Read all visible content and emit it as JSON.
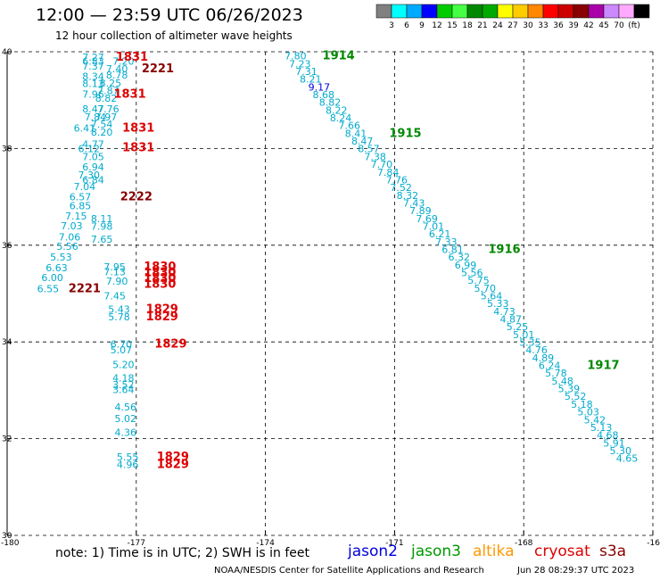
{
  "header": {
    "title": "12:00 — 23:59 UTC 06/26/2023",
    "subtitle": "12 hour collection of altimeter wave heights"
  },
  "footer": {
    "note": "note:  1) Time is in UTC; 2) SWH is in feet",
    "credit": "NOAA/NESDIS Center for Satellite Applications and Research",
    "timestamp": "Jun 28 08:29:37 UTC 2023"
  },
  "satellites": [
    {
      "name": "jason2",
      "color": "#0000dd"
    },
    {
      "name": "jason3",
      "color": "#009900"
    },
    {
      "name": "altika",
      "color": "#ff9900"
    },
    {
      "name": "cryosat",
      "color": "#dd0000"
    },
    {
      "name": "s3a",
      "color": "#880000"
    }
  ],
  "colorbar": {
    "colors": [
      "#808080",
      "#00ffff",
      "#00aaff",
      "#0000ff",
      "#00cc00",
      "#44ff44",
      "#008800",
      "#00aa00",
      "#ffff00",
      "#ffcc00",
      "#ff8800",
      "#ff0000",
      "#cc0000",
      "#880000",
      "#aa00aa",
      "#cc88ff",
      "#ffaaff",
      "#000000"
    ],
    "labels": [
      "3",
      "6",
      "9",
      "12",
      "15",
      "18",
      "21",
      "24",
      "27",
      "30",
      "33",
      "36",
      "39",
      "42",
      "45",
      "70",
      "(ft)"
    ]
  },
  "chart_data": {
    "type": "scatter",
    "xlim": [
      -180,
      -165
    ],
    "ylim": [
      30,
      40
    ],
    "xticks": [
      "-180",
      "-177",
      "-174",
      "-171",
      "-168",
      "-16"
    ],
    "yticks": [
      "30",
      "32",
      "34",
      "36",
      "38",
      "40"
    ],
    "grid": "dashed",
    "swh_points": [
      {
        "lon": -178.0,
        "lat": 39.82,
        "v": "7.27"
      },
      {
        "lon": -177.3,
        "lat": 39.73,
        "v": "7.20"
      },
      {
        "lon": -178.0,
        "lat": 39.73,
        "v": "6.83"
      },
      {
        "lon": -178.0,
        "lat": 39.63,
        "v": "7.37"
      },
      {
        "lon": -177.45,
        "lat": 39.58,
        "v": "7.40"
      },
      {
        "lon": -178.0,
        "lat": 39.42,
        "v": "8.34"
      },
      {
        "lon": -177.45,
        "lat": 39.45,
        "v": "8.78"
      },
      {
        "lon": -178.0,
        "lat": 39.27,
        "v": "8.13"
      },
      {
        "lon": -177.6,
        "lat": 39.28,
        "v": "8.25"
      },
      {
        "lon": -177.65,
        "lat": 39.12,
        "v": "7.87"
      },
      {
        "lon": -178.0,
        "lat": 39.05,
        "v": "7.96"
      },
      {
        "lon": -177.7,
        "lat": 38.97,
        "v": "8.82"
      },
      {
        "lon": -178.0,
        "lat": 38.75,
        "v": "8.47"
      },
      {
        "lon": -177.65,
        "lat": 38.75,
        "v": "7.76"
      },
      {
        "lon": -177.95,
        "lat": 38.58,
        "v": "7.84"
      },
      {
        "lon": -177.7,
        "lat": 38.58,
        "v": "7.97"
      },
      {
        "lon": -177.8,
        "lat": 38.43,
        "v": "7.54"
      },
      {
        "lon": -178.2,
        "lat": 38.35,
        "v": "6.41"
      },
      {
        "lon": -177.8,
        "lat": 38.27,
        "v": "8.20"
      },
      {
        "lon": -178.0,
        "lat": 38.02,
        "v": "4.77"
      },
      {
        "lon": -178.1,
        "lat": 37.92,
        "v": "6.12"
      },
      {
        "lon": -178.0,
        "lat": 37.76,
        "v": "7.05"
      },
      {
        "lon": -178.0,
        "lat": 37.55,
        "v": "6.94"
      },
      {
        "lon": -178.1,
        "lat": 37.38,
        "v": "7.30"
      },
      {
        "lon": -178.0,
        "lat": 37.28,
        "v": "6.84"
      },
      {
        "lon": -178.2,
        "lat": 37.14,
        "v": "7.04"
      },
      {
        "lon": -178.3,
        "lat": 36.93,
        "v": "6.57"
      },
      {
        "lon": -178.3,
        "lat": 36.74,
        "v": "6.85"
      },
      {
        "lon": -178.4,
        "lat": 36.53,
        "v": "7.15"
      },
      {
        "lon": -177.8,
        "lat": 36.48,
        "v": "8.11"
      },
      {
        "lon": -178.5,
        "lat": 36.33,
        "v": "7.03"
      },
      {
        "lon": -177.8,
        "lat": 36.32,
        "v": "7.98"
      },
      {
        "lon": -178.55,
        "lat": 36.1,
        "v": "7.06"
      },
      {
        "lon": -177.8,
        "lat": 36.05,
        "v": "7.65"
      },
      {
        "lon": -178.6,
        "lat": 35.9,
        "v": "5.56"
      },
      {
        "lon": -178.75,
        "lat": 35.68,
        "v": "5.53"
      },
      {
        "lon": -177.5,
        "lat": 35.48,
        "v": "7.95"
      },
      {
        "lon": -178.85,
        "lat": 35.46,
        "v": "6.63"
      },
      {
        "lon": -177.5,
        "lat": 35.38,
        "v": "7.13"
      },
      {
        "lon": -178.95,
        "lat": 35.26,
        "v": "6.00"
      },
      {
        "lon": -177.45,
        "lat": 35.18,
        "v": "7.90"
      },
      {
        "lon": -179.05,
        "lat": 35.03,
        "v": "6.55"
      },
      {
        "lon": -177.5,
        "lat": 34.88,
        "v": "7.45"
      },
      {
        "lon": -177.4,
        "lat": 34.6,
        "v": "5.43"
      },
      {
        "lon": -177.4,
        "lat": 34.45,
        "v": "5.78"
      },
      {
        "lon": -177.35,
        "lat": 33.88,
        "v": "6.70"
      },
      {
        "lon": -177.35,
        "lat": 33.76,
        "v": "5.07"
      },
      {
        "lon": -177.3,
        "lat": 33.46,
        "v": "5.20"
      },
      {
        "lon": -177.3,
        "lat": 33.18,
        "v": "4.18"
      },
      {
        "lon": -177.3,
        "lat": 33.04,
        "v": "3.52"
      },
      {
        "lon": -177.3,
        "lat": 32.94,
        "v": "3.64"
      },
      {
        "lon": -177.25,
        "lat": 32.58,
        "v": "4.56"
      },
      {
        "lon": -177.25,
        "lat": 32.34,
        "v": "5.02"
      },
      {
        "lon": -177.25,
        "lat": 32.06,
        "v": "4.36"
      },
      {
        "lon": -177.2,
        "lat": 31.55,
        "v": "5.55"
      },
      {
        "lon": -177.2,
        "lat": 31.39,
        "v": "4.96"
      },
      {
        "lon": -173.3,
        "lat": 39.84,
        "v": "7.80"
      },
      {
        "lon": -173.2,
        "lat": 39.68,
        "v": "7.23"
      },
      {
        "lon": -173.05,
        "lat": 39.52,
        "v": "7.31"
      },
      {
        "lon": -172.95,
        "lat": 39.36,
        "v": "8.21"
      },
      {
        "lon": -172.75,
        "lat": 39.2,
        "v": "9.17",
        "c": "#0000dd"
      },
      {
        "lon": -172.65,
        "lat": 39.04,
        "v": "8.68"
      },
      {
        "lon": -172.5,
        "lat": 38.88,
        "v": "8.82"
      },
      {
        "lon": -172.35,
        "lat": 38.72,
        "v": "8.22"
      },
      {
        "lon": -172.25,
        "lat": 38.56,
        "v": "8.24"
      },
      {
        "lon": -172.05,
        "lat": 38.4,
        "v": "7.66"
      },
      {
        "lon": -171.9,
        "lat": 38.24,
        "v": "8.41"
      },
      {
        "lon": -171.75,
        "lat": 38.08,
        "v": "8.47"
      },
      {
        "lon": -171.6,
        "lat": 37.92,
        "v": "8.57"
      },
      {
        "lon": -171.45,
        "lat": 37.76,
        "v": "7.38"
      },
      {
        "lon": -171.3,
        "lat": 37.6,
        "v": "7.70"
      },
      {
        "lon": -171.15,
        "lat": 37.44,
        "v": "7.84"
      },
      {
        "lon": -170.95,
        "lat": 37.28,
        "v": "7.76"
      },
      {
        "lon": -170.85,
        "lat": 37.12,
        "v": "7.52"
      },
      {
        "lon": -170.7,
        "lat": 36.96,
        "v": "8.32"
      },
      {
        "lon": -170.55,
        "lat": 36.8,
        "v": "7.43"
      },
      {
        "lon": -170.4,
        "lat": 36.64,
        "v": "7.89"
      },
      {
        "lon": -170.25,
        "lat": 36.48,
        "v": "7.69"
      },
      {
        "lon": -170.1,
        "lat": 36.32,
        "v": "7.01"
      },
      {
        "lon": -169.95,
        "lat": 36.16,
        "v": "6.21"
      },
      {
        "lon": -169.8,
        "lat": 36.0,
        "v": "7.33"
      },
      {
        "lon": -169.65,
        "lat": 35.84,
        "v": "6.81"
      },
      {
        "lon": -169.5,
        "lat": 35.68,
        "v": "6.32"
      },
      {
        "lon": -169.35,
        "lat": 35.52,
        "v": "6.99"
      },
      {
        "lon": -169.2,
        "lat": 35.36,
        "v": "5.56"
      },
      {
        "lon": -169.05,
        "lat": 35.2,
        "v": "5.75"
      },
      {
        "lon": -168.9,
        "lat": 35.04,
        "v": "5.70"
      },
      {
        "lon": -168.75,
        "lat": 34.88,
        "v": "5.64"
      },
      {
        "lon": -168.6,
        "lat": 34.72,
        "v": "5.33"
      },
      {
        "lon": -168.45,
        "lat": 34.56,
        "v": "4.73"
      },
      {
        "lon": -168.3,
        "lat": 34.4,
        "v": "4.87"
      },
      {
        "lon": -168.15,
        "lat": 34.24,
        "v": "5.25"
      },
      {
        "lon": -168.0,
        "lat": 34.08,
        "v": "5.01"
      },
      {
        "lon": -167.85,
        "lat": 33.92,
        "v": "5.35"
      },
      {
        "lon": -167.7,
        "lat": 33.76,
        "v": "4.76"
      },
      {
        "lon": -167.55,
        "lat": 33.6,
        "v": "4.89"
      },
      {
        "lon": -167.4,
        "lat": 33.44,
        "v": "6.24"
      },
      {
        "lon": -167.25,
        "lat": 33.28,
        "v": "5.78"
      },
      {
        "lon": -167.1,
        "lat": 33.12,
        "v": "5.48"
      },
      {
        "lon": -166.95,
        "lat": 32.96,
        "v": "5.39"
      },
      {
        "lon": -166.8,
        "lat": 32.8,
        "v": "5.52"
      },
      {
        "lon": -166.65,
        "lat": 32.64,
        "v": "5.18"
      },
      {
        "lon": -166.5,
        "lat": 32.48,
        "v": "5.03"
      },
      {
        "lon": -166.35,
        "lat": 32.32,
        "v": "5.42"
      },
      {
        "lon": -166.2,
        "lat": 32.16,
        "v": "5.13"
      },
      {
        "lon": -166.05,
        "lat": 32.0,
        "v": "4.68"
      },
      {
        "lon": -165.9,
        "lat": 31.84,
        "v": "5.91"
      },
      {
        "lon": -165.75,
        "lat": 31.68,
        "v": "5.30"
      },
      {
        "lon": -165.6,
        "lat": 31.52,
        "v": "4.65"
      }
    ],
    "time_labels": [
      {
        "lon": -177.1,
        "lat": 39.82,
        "t": "1831",
        "c": "#dd0000"
      },
      {
        "lon": -176.5,
        "lat": 39.58,
        "t": "2221",
        "c": "#880000"
      },
      {
        "lon": -177.15,
        "lat": 39.05,
        "t": "1831",
        "c": "#dd0000"
      },
      {
        "lon": -176.95,
        "lat": 38.35,
        "t": "1831",
        "c": "#dd0000"
      },
      {
        "lon": -176.95,
        "lat": 37.94,
        "t": "1831",
        "c": "#dd0000"
      },
      {
        "lon": -177.0,
        "lat": 36.93,
        "t": "2222",
        "c": "#880000"
      },
      {
        "lon": -176.45,
        "lat": 35.48,
        "t": "1830",
        "c": "#dd0000"
      },
      {
        "lon": -176.45,
        "lat": 35.36,
        "t": "1830",
        "c": "#dd0000"
      },
      {
        "lon": -176.45,
        "lat": 35.24,
        "t": "1830",
        "c": "#dd0000"
      },
      {
        "lon": -176.45,
        "lat": 35.12,
        "t": "1830",
        "c": "#dd0000"
      },
      {
        "lon": -178.2,
        "lat": 35.03,
        "t": "2221",
        "c": "#880000"
      },
      {
        "lon": -176.4,
        "lat": 34.6,
        "t": "1829",
        "c": "#dd0000"
      },
      {
        "lon": -176.4,
        "lat": 34.45,
        "t": "1829",
        "c": "#dd0000"
      },
      {
        "lon": -176.2,
        "lat": 33.88,
        "t": "1829",
        "c": "#dd0000"
      },
      {
        "lon": -176.15,
        "lat": 31.55,
        "t": "1829",
        "c": "#dd0000"
      },
      {
        "lon": -176.15,
        "lat": 31.39,
        "t": "1829",
        "c": "#dd0000"
      },
      {
        "lon": -172.3,
        "lat": 39.84,
        "t": "1914",
        "c": "#008800"
      },
      {
        "lon": -170.75,
        "lat": 38.24,
        "t": "1915",
        "c": "#008800"
      },
      {
        "lon": -168.45,
        "lat": 35.84,
        "t": "1916",
        "c": "#008800"
      },
      {
        "lon": -166.15,
        "lat": 33.44,
        "t": "1917",
        "c": "#008800"
      }
    ]
  }
}
